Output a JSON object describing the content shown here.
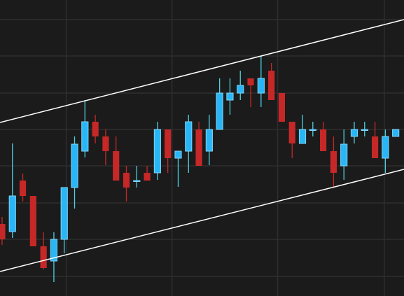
{
  "chart_data": {
    "type": "candlestick",
    "x": [
      0,
      1,
      2,
      3,
      4,
      5,
      6,
      7,
      8,
      9,
      10,
      11,
      12,
      13,
      14,
      15,
      16,
      17,
      18,
      19,
      20,
      21,
      22,
      23,
      24,
      25,
      26,
      27,
      28,
      29,
      30,
      31,
      32,
      33,
      34,
      35,
      36,
      37,
      38
    ],
    "open": [
      103,
      92,
      165,
      143,
      71,
      50,
      81,
      155,
      207,
      249,
      228,
      207,
      176,
      165,
      176,
      176,
      238,
      197,
      207,
      238,
      207,
      238,
      280,
      290,
      311,
      290,
      322,
      290,
      249,
      218,
      238,
      238,
      207,
      186,
      228,
      238,
      228,
      197,
      228
    ],
    "high": [
      113,
      218,
      175,
      143,
      91,
      91,
      155,
      228,
      280,
      259,
      238,
      228,
      186,
      186,
      186,
      249,
      238,
      207,
      259,
      249,
      259,
      311,
      311,
      322,
      311,
      343,
      333,
      290,
      249,
      259,
      249,
      249,
      228,
      238,
      249,
      249,
      249,
      238,
      238
    ],
    "low": [
      73,
      83,
      135,
      71,
      38,
      20,
      61,
      125,
      198,
      218,
      187,
      165,
      135,
      155,
      165,
      166,
      176,
      156,
      176,
      186,
      187,
      238,
      259,
      280,
      270,
      270,
      280,
      249,
      197,
      218,
      228,
      207,
      155,
      166,
      218,
      228,
      197,
      176,
      228
    ],
    "close": [
      81,
      143,
      143,
      71,
      40,
      81,
      155,
      217,
      249,
      228,
      207,
      165,
      155,
      165,
      165,
      238,
      197,
      207,
      249,
      186,
      238,
      290,
      290,
      301,
      301,
      311,
      280,
      249,
      218,
      238,
      238,
      207,
      176,
      217,
      238,
      238,
      197,
      228,
      238
    ],
    "up_color": "#29b6f6",
    "down_color": "#c62828",
    "xlim": [
      -0.2,
      38.8
    ],
    "ylim": [
      0,
      423
    ],
    "ygrid": [
      28,
      81,
      133,
      186,
      238,
      290,
      343,
      395
    ],
    "xgrid": [
      6.2,
      16.4,
      26.6,
      36.9
    ],
    "grid": true,
    "trendlines": [
      {
        "x": [
          -0.2,
          38.8
        ],
        "values": [
          248,
          395
        ],
        "color": "#ffffff"
      },
      {
        "x": [
          -0.2,
          38.8
        ],
        "values": [
          35,
          181
        ],
        "color": "#ffffff"
      }
    ]
  }
}
